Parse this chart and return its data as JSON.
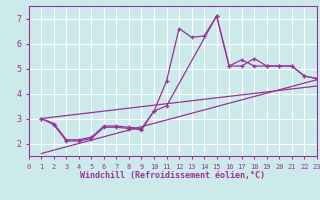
{
  "title": "",
  "xlabel": "Windchill (Refroidissement éolien,°C)",
  "background_color": "#cceaea",
  "grid_color": "#ffffff",
  "line_color": "#993399",
  "xlim": [
    0,
    23
  ],
  "ylim": [
    1.5,
    7.5
  ],
  "xticks": [
    0,
    1,
    2,
    3,
    4,
    5,
    6,
    7,
    8,
    9,
    10,
    11,
    12,
    13,
    14,
    15,
    16,
    17,
    18,
    19,
    20,
    21,
    22,
    23
  ],
  "yticks": [
    2,
    3,
    4,
    5,
    6,
    7
  ],
  "jagged_x": [
    1,
    2,
    3,
    4,
    5,
    6,
    7,
    8,
    9,
    10,
    11,
    12,
    13,
    14,
    15,
    16,
    17,
    18,
    19,
    20,
    21,
    22,
    23
  ],
  "jagged_y": [
    3.0,
    2.75,
    2.1,
    2.1,
    2.2,
    2.65,
    2.65,
    2.6,
    2.55,
    3.3,
    4.5,
    6.6,
    6.25,
    6.3,
    7.1,
    5.1,
    5.1,
    5.4,
    5.1,
    5.1,
    5.1,
    4.7,
    4.6
  ],
  "trend1_x": [
    1,
    2,
    3,
    4,
    5,
    6,
    7,
    8,
    9,
    10,
    11,
    15,
    16,
    17,
    18,
    19,
    20,
    21,
    22,
    23
  ],
  "trend1_y": [
    3.0,
    2.8,
    2.15,
    2.15,
    2.25,
    2.7,
    2.7,
    2.65,
    2.6,
    3.3,
    3.5,
    7.1,
    5.1,
    5.35,
    5.1,
    5.1,
    5.1,
    5.1,
    4.7,
    4.6
  ],
  "line1_x": [
    1,
    23
  ],
  "line1_y": [
    3.0,
    4.3
  ],
  "line2_x": [
    1,
    23
  ],
  "line2_y": [
    1.6,
    4.55
  ]
}
